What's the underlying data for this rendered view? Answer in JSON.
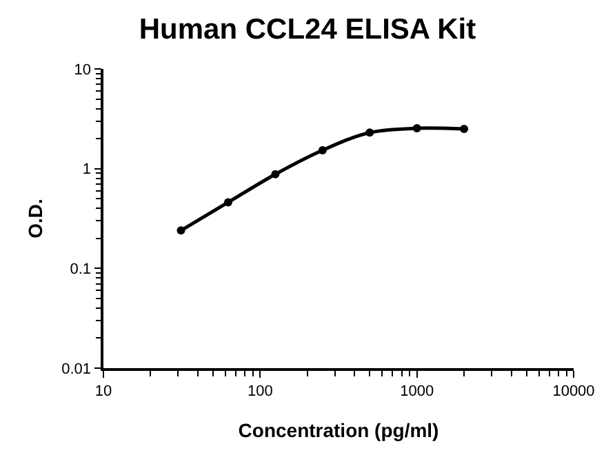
{
  "chart_data": {
    "type": "line",
    "title": "Human CCL24 ELISA Kit",
    "xlabel": "Concentration (pg/ml)",
    "ylabel": "O.D.",
    "x": [
      31.25,
      62.5,
      125,
      250,
      500,
      1000,
      2000
    ],
    "series": [
      {
        "color": "#000000",
        "values": [
          0.24,
          0.46,
          0.88,
          1.53,
          2.3,
          2.54,
          2.5
        ]
      }
    ],
    "log": "xy",
    "xlim": [
      10,
      10000
    ],
    "ylim": [
      0.01,
      10
    ],
    "xticks": [
      10,
      100,
      1000,
      10000
    ],
    "yticks": [
      0.01,
      0.1,
      1,
      10
    ],
    "marker": "circle",
    "line_style": "solid"
  }
}
